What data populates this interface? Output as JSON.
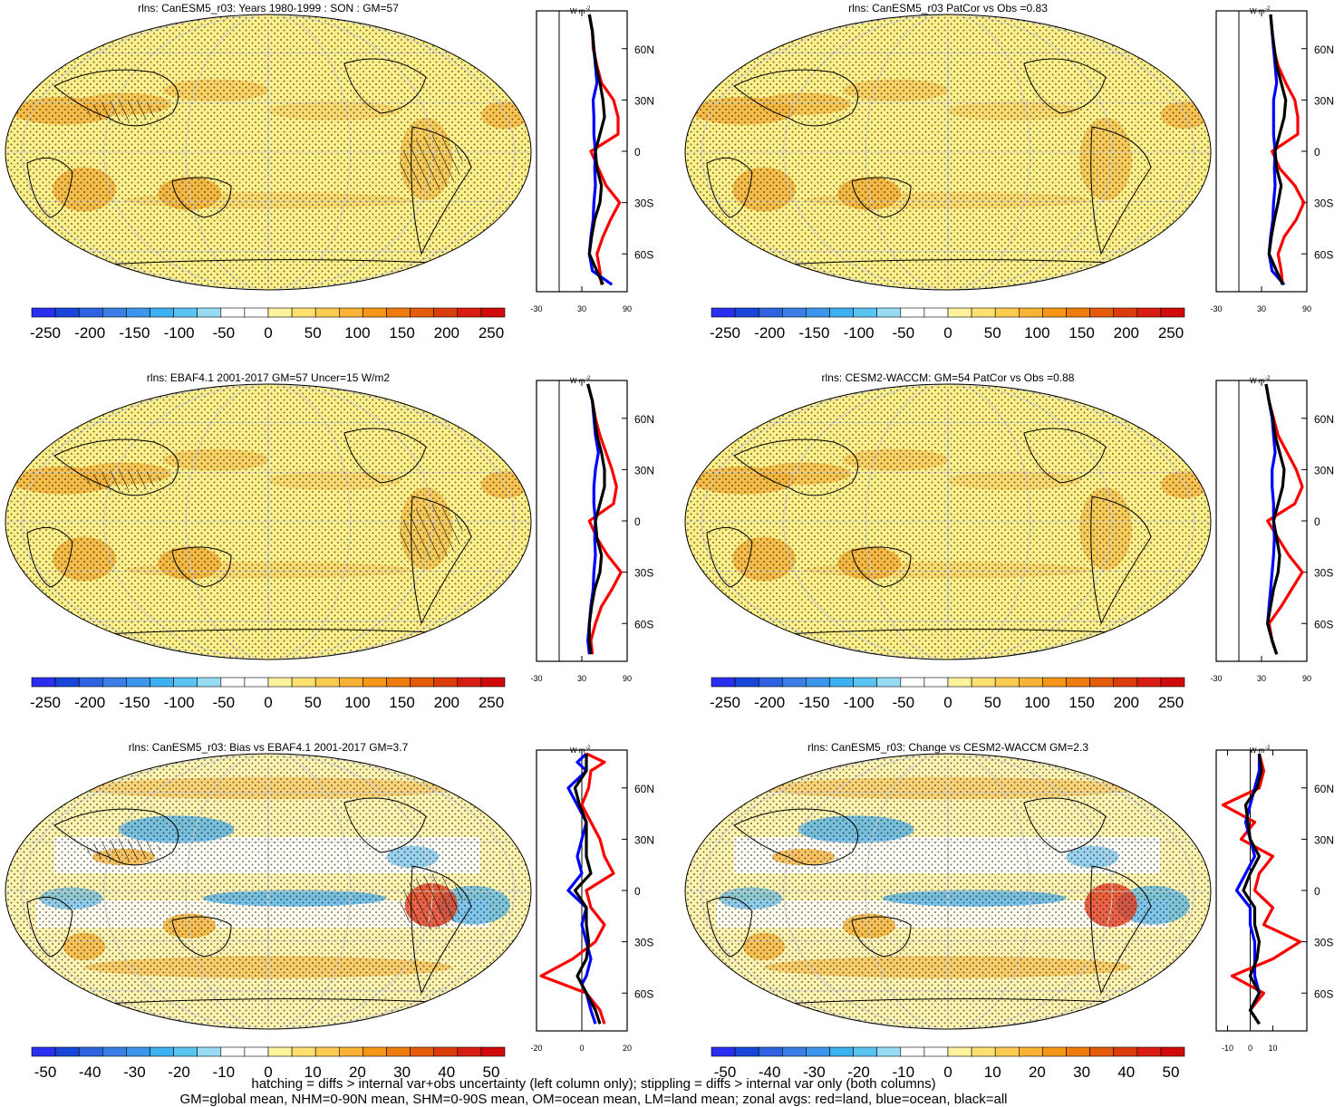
{
  "colors": {
    "land_line": "#ff0000",
    "ocean_line": "#0000ff",
    "all_line": "#000000",
    "map_base": "#fdf08a",
    "map_orange": "#f5b43c",
    "map_blue": "#49aee8",
    "map_red": "#e63c1e"
  },
  "colorbar_main": {
    "colors": [
      "#2a2ef0",
      "#1846d8",
      "#2e62e0",
      "#3a7ee6",
      "#3c96ec",
      "#3cb0f0",
      "#5cc4f2",
      "#98dcf4",
      "#ffffff",
      "#ffffff",
      "#fff29c",
      "#fee072",
      "#fccc50",
      "#f9b233",
      "#f59617",
      "#ee7c0c",
      "#e45c0a",
      "#dc3c0c",
      "#d81e14",
      "#d00a0a"
    ],
    "labels": [
      "-250",
      "-200",
      "-150",
      "-100",
      "-50",
      "0",
      "50",
      "100",
      "150",
      "200",
      "250"
    ]
  },
  "colorbar_diff": {
    "colors": [
      "#2a2ef0",
      "#1846d8",
      "#2e62e0",
      "#3a7ee6",
      "#3c96ec",
      "#3cb0f0",
      "#5cc4f2",
      "#98dcf4",
      "#ffffff",
      "#ffffff",
      "#fff29c",
      "#fee072",
      "#fccc50",
      "#f9b233",
      "#f59617",
      "#ee7c0c",
      "#e45c0a",
      "#dc3c0c",
      "#d81e14",
      "#d00a0a"
    ],
    "labels": [
      "-50",
      "-40",
      "-30",
      "-20",
      "-10",
      "0",
      "10",
      "20",
      "30",
      "40",
      "50"
    ]
  },
  "lat_labels": [
    "60N",
    "30N",
    "0",
    "30S",
    "60S"
  ],
  "zonal_units": "W m",
  "zonal_units_exp": "-2",
  "chart_data": [
    {
      "type": "heatmap",
      "title": "rlns: CanESM5_r03: Years 1980-1999 : SON : GM=57",
      "zonal_xlim": [
        -30,
        90
      ],
      "zonal_ticks": [
        "-30",
        "30",
        "90"
      ],
      "zonal_profile": {
        "lat": [
          80,
          70,
          60,
          50,
          40,
          30,
          20,
          10,
          0,
          -10,
          -20,
          -30,
          -40,
          -50,
          -60,
          -70,
          -78
        ],
        "land": [
          40,
          44,
          45,
          50,
          56,
          72,
          78,
          78,
          42,
          52,
          62,
          80,
          68,
          58,
          50,
          54,
          56
        ],
        "ocean": [
          40,
          44,
          46,
          48,
          50,
          45,
          46,
          46,
          48,
          47,
          48,
          46,
          45,
          42,
          40,
          44,
          70
        ],
        "all": [
          40,
          44,
          46,
          49,
          54,
          58,
          60,
          54,
          48,
          50,
          56,
          54,
          47,
          43,
          40,
          50,
          58
        ]
      }
    },
    {
      "type": "heatmap",
      "title": "rlns: CanESM5_r03 PatCor vs Obs =0.83",
      "zonal_xlim": [
        -30,
        90
      ],
      "zonal_ticks": [
        "-30",
        "30",
        "90"
      ],
      "zonal_profile": {
        "lat": [
          80,
          70,
          60,
          50,
          40,
          30,
          20,
          10,
          0,
          -10,
          -20,
          -30,
          -40,
          -50,
          -60,
          -70,
          -78
        ],
        "land": [
          42,
          44,
          46,
          52,
          62,
          74,
          78,
          78,
          44,
          54,
          74,
          86,
          76,
          60,
          52,
          56,
          58
        ],
        "ocean": [
          42,
          44,
          46,
          48,
          50,
          46,
          46,
          46,
          48,
          47,
          48,
          46,
          45,
          42,
          40,
          44,
          60
        ],
        "all": [
          42,
          44,
          47,
          50,
          56,
          62,
          60,
          54,
          48,
          50,
          56,
          52,
          47,
          43,
          40,
          50,
          58
        ]
      }
    },
    {
      "type": "heatmap",
      "title": "rlns: EBAF4.1 2001-2017 GM=57 Uncer=15 W/m2",
      "zonal_xlim": [
        -30,
        90
      ],
      "zonal_ticks": [
        "-30",
        "30",
        "90"
      ],
      "zonal_profile": {
        "lat": [
          80,
          70,
          60,
          50,
          40,
          30,
          20,
          10,
          0,
          -10,
          -20,
          -30,
          -40,
          -50,
          -60,
          -70,
          -78
        ],
        "land": [
          38,
          44,
          48,
          54,
          62,
          70,
          76,
          72,
          40,
          50,
          64,
          82,
          70,
          56,
          48,
          42,
          44
        ],
        "ocean": [
          38,
          44,
          46,
          48,
          52,
          48,
          46,
          46,
          48,
          47,
          48,
          46,
          45,
          42,
          40,
          38,
          40
        ],
        "all": [
          38,
          44,
          47,
          50,
          56,
          60,
          60,
          54,
          48,
          50,
          56,
          54,
          47,
          43,
          40,
          40,
          42
        ]
      }
    },
    {
      "type": "heatmap",
      "title": "rlns: CESM2-WACCM: GM=54 PatCor vs Obs =0.88",
      "zonal_xlim": [
        -30,
        90
      ],
      "zonal_ticks": [
        "-30",
        "30",
        "90"
      ],
      "zonal_profile": {
        "lat": [
          80,
          70,
          60,
          50,
          40,
          30,
          20,
          10,
          0,
          -10,
          -20,
          -30,
          -40,
          -50,
          -60,
          -70,
          -78
        ],
        "land": [
          36,
          40,
          46,
          52,
          64,
          76,
          84,
          74,
          38,
          52,
          66,
          84,
          70,
          56,
          40,
          44,
          50
        ],
        "ocean": [
          36,
          40,
          44,
          46,
          48,
          44,
          44,
          46,
          46,
          47,
          46,
          44,
          42,
          40,
          38,
          44,
          50
        ],
        "all": [
          36,
          40,
          45,
          48,
          54,
          60,
          58,
          52,
          46,
          50,
          54,
          52,
          46,
          42,
          38,
          44,
          50
        ]
      }
    },
    {
      "type": "heatmap",
      "title": "rlns: CanESM5_r03: Bias vs EBAF4.1 2001-2017  GM=3.7",
      "zonal_xlim": [
        -20,
        20
      ],
      "zonal_ticks": [
        "-20",
        "0",
        "20"
      ],
      "zonal_profile": {
        "lat": [
          80,
          75,
          70,
          60,
          50,
          40,
          30,
          20,
          10,
          0,
          -10,
          -20,
          -30,
          -40,
          -50,
          -55,
          -60,
          -70,
          -78
        ],
        "land": [
          2,
          10,
          4,
          3,
          0,
          4,
          8,
          10,
          14,
          2,
          4,
          10,
          6,
          -4,
          -18,
          -8,
          2,
          8,
          10
        ],
        "ocean": [
          2,
          -2,
          2,
          -6,
          -2,
          2,
          0,
          -2,
          0,
          -6,
          2,
          0,
          2,
          4,
          2,
          0,
          2,
          4,
          6
        ],
        "all": [
          2,
          2,
          2,
          -3,
          -1,
          2,
          2,
          2,
          4,
          -3,
          2,
          2,
          3,
          2,
          -2,
          0,
          2,
          6,
          8
        ]
      }
    },
    {
      "type": "heatmap",
      "title": "rlns: CanESM5_r03: Change vs CESM2-WACCM GM=2.3",
      "zonal_xlim": [
        -15,
        25
      ],
      "zonal_ticks": [
        "-10",
        "0",
        "10"
      ],
      "zonal_profile": {
        "lat": [
          80,
          70,
          60,
          50,
          40,
          30,
          20,
          10,
          0,
          -10,
          -20,
          -30,
          -40,
          -50,
          -60,
          -70,
          -78
        ],
        "land": [
          4,
          6,
          4,
          -12,
          2,
          -4,
          10,
          4,
          2,
          10,
          6,
          22,
          10,
          -8,
          6,
          0,
          4
        ],
        "ocean": [
          4,
          4,
          2,
          0,
          -2,
          0,
          2,
          -2,
          -6,
          0,
          0,
          2,
          2,
          2,
          4,
          0,
          4
        ],
        "all": [
          4,
          5,
          3,
          -2,
          -1,
          0,
          4,
          0,
          -3,
          2,
          2,
          4,
          3,
          0,
          4,
          0,
          4
        ]
      }
    }
  ],
  "footer": {
    "line1": "hatching = diffs > internal var+obs uncertainty (left column only); stippling = diffs > internal var only (both columns)",
    "line2": "GM=global mean, NHM=0-90N mean, SHM=0-90S mean, OM=ocean mean, LM=land mean; zonal avgs: red=land, blue=ocean, black=all"
  }
}
